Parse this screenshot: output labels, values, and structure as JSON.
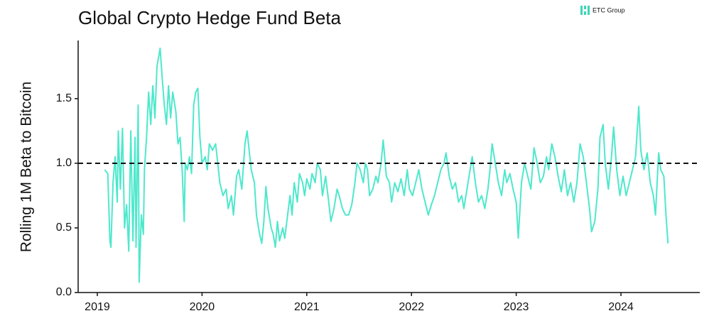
{
  "chart_data": {
    "type": "line",
    "title": "Global Crypto Hedge Fund Beta",
    "ylabel": "Rolling 1M Beta to Bitcoin",
    "logo": "ETC Group",
    "color": "#4ee8cc",
    "hline": 1.0,
    "xlim": [
      2018.817,
      2024.753
    ],
    "xticks": [
      2019,
      2020,
      2021,
      2022,
      2023,
      2024
    ],
    "ylim": [
      0,
      1.95
    ],
    "yticks": [
      {
        "value": 0,
        "label": "0.0"
      },
      {
        "value": 0.5,
        "label": "0.5"
      },
      {
        "value": 1,
        "label": "1.0"
      },
      {
        "value": 1.5,
        "label": "1.5"
      }
    ],
    "x": [
      2019.07,
      2019.1,
      2019.12,
      2019.13,
      2019.15,
      2019.17,
      2019.19,
      2019.2,
      2019.22,
      2019.24,
      2019.26,
      2019.28,
      2019.3,
      2019.32,
      2019.34,
      2019.36,
      2019.37,
      2019.39,
      2019.4,
      2019.42,
      2019.44,
      2019.45,
      2019.47,
      2019.49,
      2019.51,
      2019.53,
      2019.55,
      2019.57,
      2019.6,
      2019.62,
      2019.64,
      2019.66,
      2019.68,
      2019.7,
      2019.72,
      2019.75,
      2019.77,
      2019.79,
      2019.81,
      2019.83,
      2019.84,
      2019.86,
      2019.88,
      2019.9,
      2019.92,
      2019.94,
      2019.96,
      2019.98,
      2020.0,
      2020.03,
      2020.05,
      2020.07,
      2020.1,
      2020.13,
      2020.15,
      2020.17,
      2020.2,
      2020.23,
      2020.25,
      2020.28,
      2020.3,
      2020.33,
      2020.35,
      2020.38,
      2020.41,
      2020.43,
      2020.45,
      2020.47,
      2020.5,
      2020.52,
      2020.55,
      2020.57,
      2020.59,
      2020.61,
      2020.63,
      2020.66,
      2020.68,
      2020.7,
      2020.72,
      2020.74,
      2020.77,
      2020.79,
      2020.82,
      2020.84,
      2020.86,
      2020.88,
      2020.91,
      2020.93,
      2020.96,
      2020.98,
      2021.0,
      2021.03,
      2021.05,
      2021.08,
      2021.1,
      2021.13,
      2021.15,
      2021.18,
      2021.21,
      2021.23,
      2021.26,
      2021.29,
      2021.31,
      2021.34,
      2021.37,
      2021.4,
      2021.43,
      2021.46,
      2021.48,
      2021.51,
      2021.54,
      2021.56,
      2021.58,
      2021.6,
      2021.63,
      2021.66,
      2021.68,
      2021.71,
      2021.73,
      2021.76,
      2021.79,
      2021.81,
      2021.84,
      2021.87,
      2021.9,
      2021.93,
      2021.96,
      2021.98,
      2022.01,
      2022.04,
      2022.07,
      2022.1,
      2022.13,
      2022.16,
      2022.19,
      2022.22,
      2022.25,
      2022.28,
      2022.31,
      2022.33,
      2022.36,
      2022.39,
      2022.42,
      2022.45,
      2022.48,
      2022.5,
      2022.53,
      2022.56,
      2022.58,
      2022.61,
      2022.64,
      2022.67,
      2022.7,
      2022.73,
      2022.75,
      2022.77,
      2022.8,
      2022.83,
      2022.86,
      2022.89,
      2022.91,
      2022.94,
      2022.97,
      2023.0,
      2023.02,
      2023.05,
      2023.08,
      2023.11,
      2023.14,
      2023.17,
      2023.2,
      2023.23,
      2023.26,
      2023.29,
      2023.31,
      2023.34,
      2023.37,
      2023.4,
      2023.43,
      2023.46,
      2023.49,
      2023.52,
      2023.55,
      2023.58,
      2023.61,
      2023.64,
      2023.67,
      2023.7,
      2023.72,
      2023.75,
      2023.78,
      2023.8,
      2023.83,
      2023.85,
      2023.88,
      2023.91,
      2023.93,
      2023.96,
      2023.99,
      2024.02,
      2024.05,
      2024.08,
      2024.11,
      2024.14,
      2024.17,
      2024.19,
      2024.22,
      2024.25,
      2024.28,
      2024.31,
      2024.33,
      2024.36,
      2024.38,
      2024.41,
      2024.43,
      2024.45
    ],
    "values": [
      0.95,
      0.92,
      0.4,
      0.35,
      0.85,
      1.05,
      0.7,
      1.25,
      0.8,
      1.27,
      0.5,
      0.68,
      0.32,
      1.25,
      0.4,
      1.2,
      0.35,
      1.45,
      0.08,
      0.6,
      0.45,
      0.95,
      1.2,
      1.55,
      1.3,
      1.6,
      1.35,
      1.75,
      1.89,
      1.65,
      1.45,
      1.3,
      1.6,
      1.35,
      1.55,
      1.4,
      1.15,
      1.2,
      0.95,
      0.55,
      1.0,
      0.95,
      1.05,
      0.92,
      1.45,
      1.55,
      1.58,
      1.2,
      1.0,
      1.05,
      0.95,
      1.15,
      1.1,
      1.15,
      1.0,
      0.85,
      0.75,
      0.8,
      0.65,
      0.75,
      0.6,
      0.9,
      0.95,
      0.8,
      1.15,
      1.25,
      1.1,
      0.95,
      0.85,
      0.6,
      0.45,
      0.38,
      0.55,
      0.82,
      0.65,
      0.5,
      0.45,
      0.35,
      0.55,
      0.4,
      0.5,
      0.42,
      0.62,
      0.75,
      0.6,
      0.85,
      0.7,
      0.92,
      0.85,
      0.75,
      0.88,
      0.8,
      0.92,
      0.85,
      1.0,
      0.95,
      0.75,
      0.9,
      0.7,
      0.55,
      0.65,
      0.8,
      0.75,
      0.65,
      0.6,
      0.6,
      0.68,
      0.85,
      1.0,
      0.95,
      0.85,
      1.0,
      0.95,
      0.75,
      0.8,
      0.9,
      0.85,
      1.0,
      1.18,
      0.9,
      0.85,
      0.7,
      0.85,
      0.78,
      0.88,
      0.75,
      0.95,
      0.8,
      0.75,
      0.85,
      0.95,
      0.8,
      0.7,
      0.6,
      0.68,
      0.75,
      0.85,
      0.95,
      1.0,
      1.08,
      0.9,
      0.8,
      0.85,
      0.7,
      0.75,
      0.65,
      0.8,
      0.95,
      1.05,
      0.85,
      0.7,
      0.75,
      0.65,
      0.8,
      0.95,
      1.15,
      1.0,
      0.85,
      0.75,
      0.95,
      0.85,
      0.92,
      0.8,
      0.7,
      0.42,
      0.85,
      1.0,
      0.9,
      0.8,
      1.12,
      1.0,
      0.85,
      0.9,
      1.05,
      0.95,
      1.15,
      1.05,
      0.9,
      0.78,
      0.95,
      0.75,
      0.85,
      0.7,
      0.85,
      1.15,
      1.05,
      0.85,
      0.65,
      0.47,
      0.55,
      0.8,
      1.2,
      1.3,
      1.0,
      0.8,
      1.05,
      1.28,
      0.95,
      0.75,
      0.9,
      0.75,
      0.85,
      0.95,
      1.05,
      1.44,
      1.1,
      0.95,
      1.08,
      0.85,
      0.75,
      0.6,
      1.08,
      0.95,
      0.9,
      0.6,
      0.38
    ]
  }
}
